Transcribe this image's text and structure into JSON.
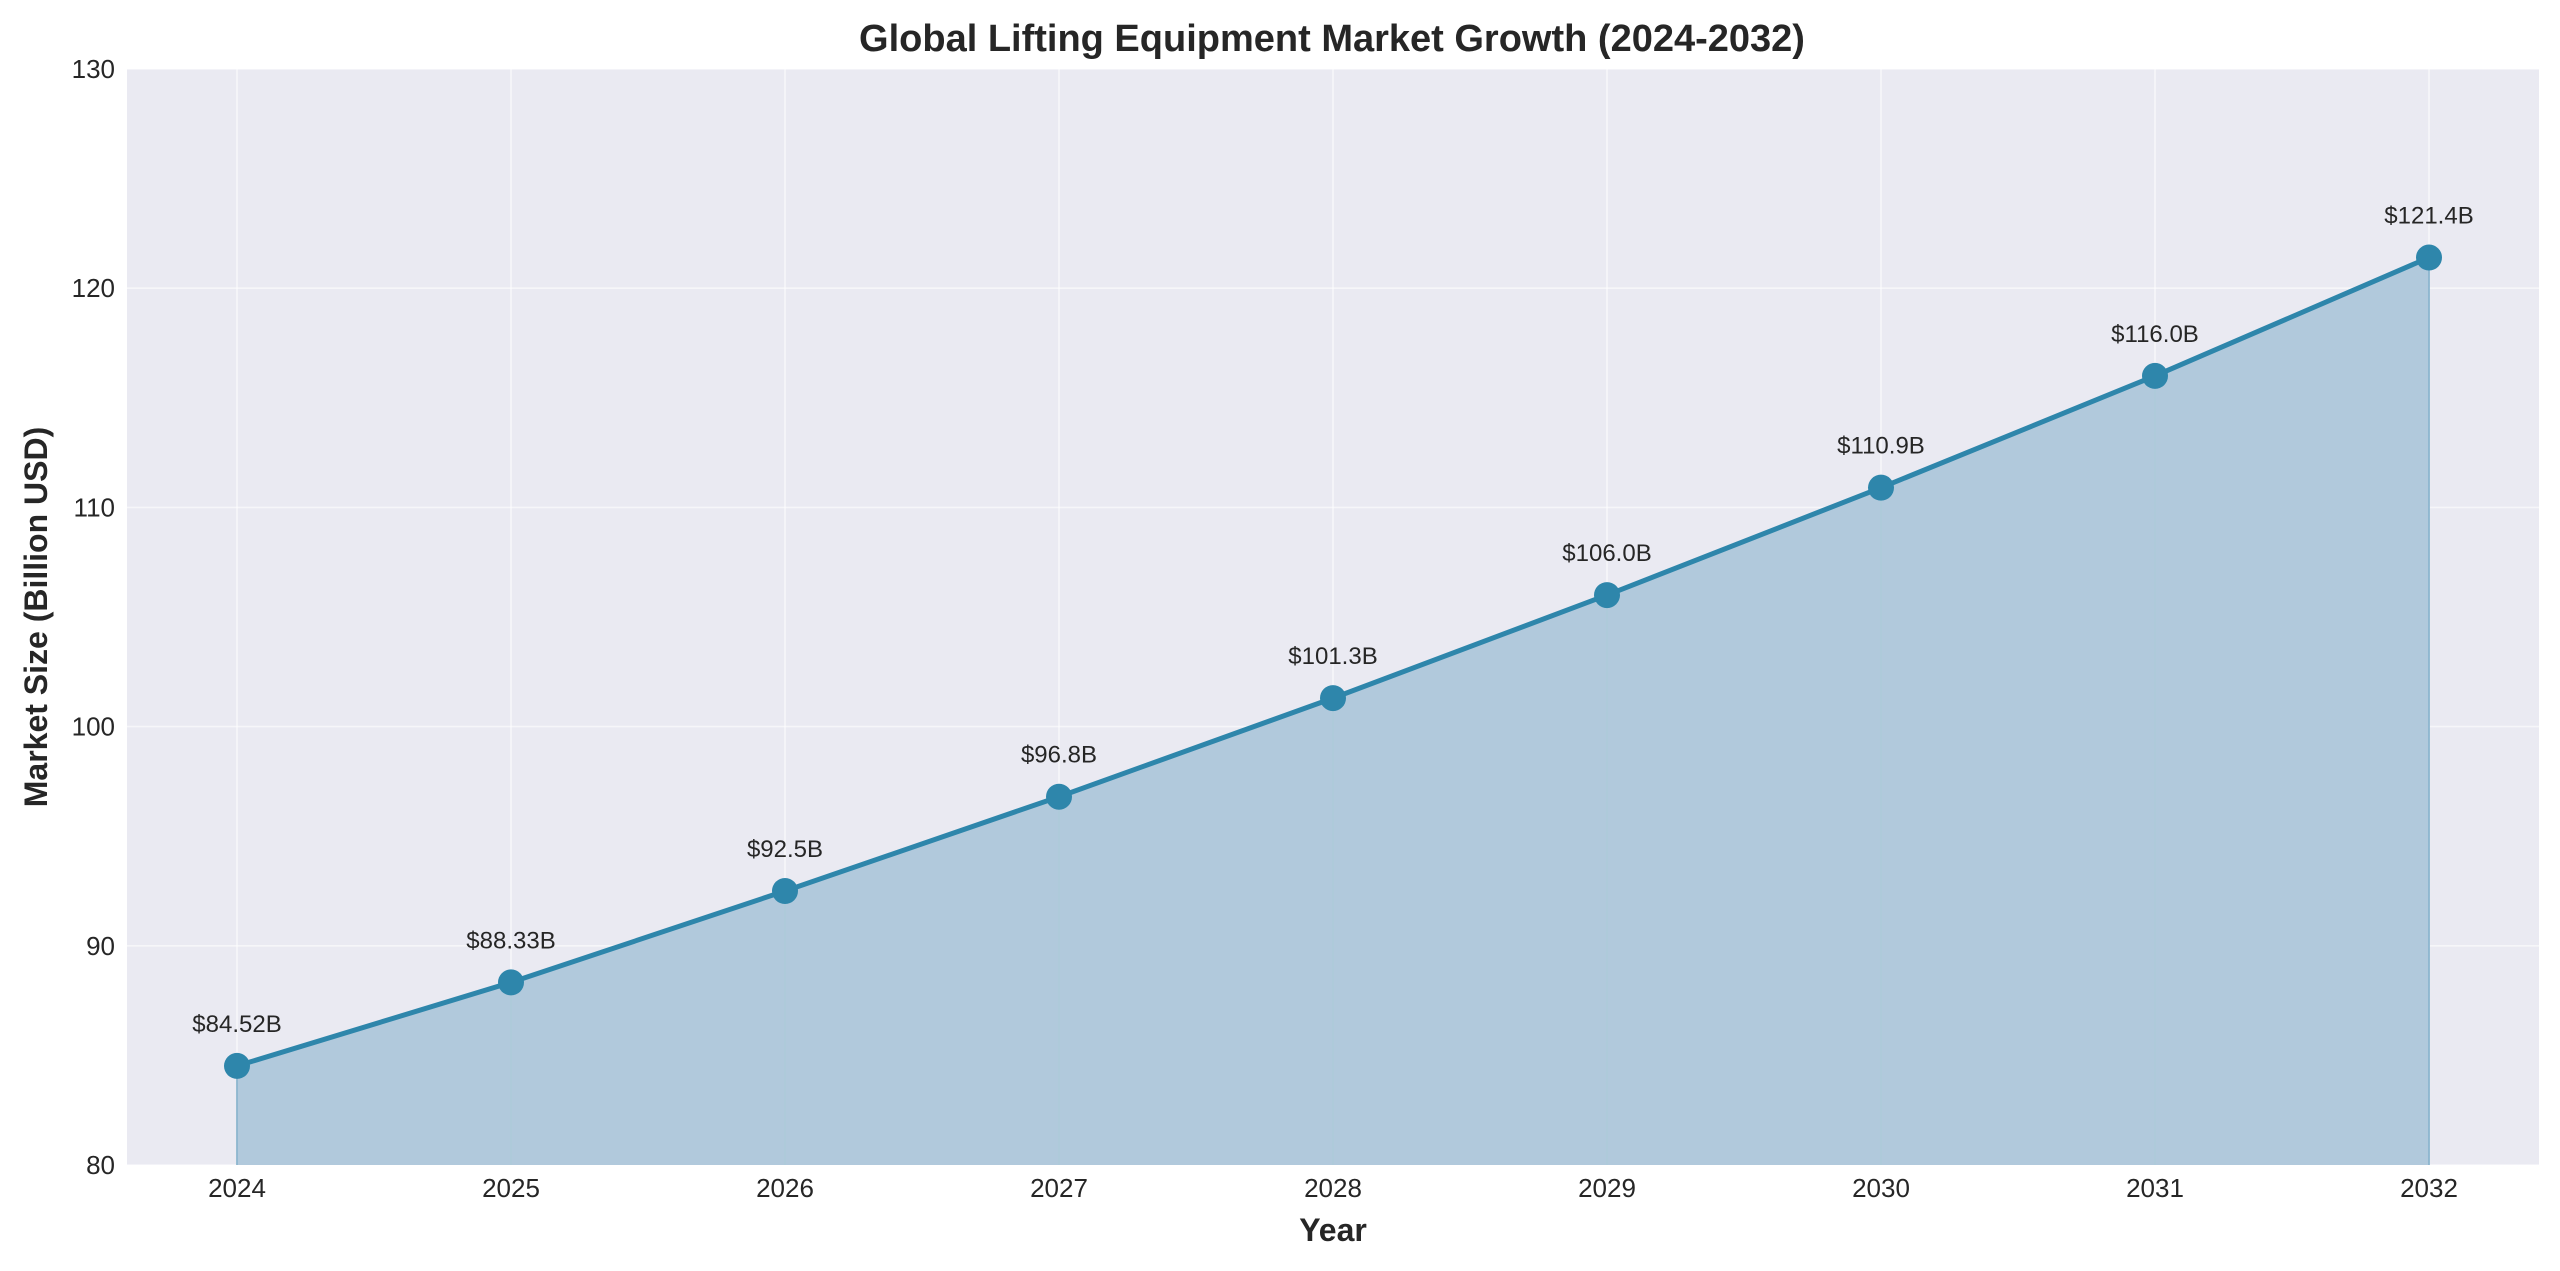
{
  "chart_data": {
    "type": "area",
    "title": "Global Lifting Equipment Market Growth (2024-2032)",
    "xlabel": "Year",
    "ylabel": "Market Size (Billion USD)",
    "x": [
      "2024",
      "2025",
      "2026",
      "2027",
      "2028",
      "2029",
      "2030",
      "2031",
      "2032"
    ],
    "series": [
      {
        "name": "Market Size",
        "values": [
          84.52,
          88.33,
          92.5,
          96.8,
          101.3,
          106.0,
          110.9,
          116.0,
          121.4
        ],
        "data_labels": [
          "$84.52B",
          "$88.33B",
          "$92.5B",
          "$96.8B",
          "$101.3B",
          "$106.0B",
          "$110.9B",
          "$116.0B",
          "$121.4B"
        ],
        "line_color": "#2E86AB",
        "fill_color": "#B1C9DC",
        "marker": "circle"
      }
    ],
    "ylim": [
      80,
      130
    ],
    "yticks": [
      80,
      90,
      100,
      110,
      120,
      130
    ],
    "ytick_labels": [
      "80",
      "90",
      "100",
      "110",
      "120",
      "130"
    ],
    "grid": true,
    "legend": "none",
    "background_color": "#EAEAF2"
  }
}
